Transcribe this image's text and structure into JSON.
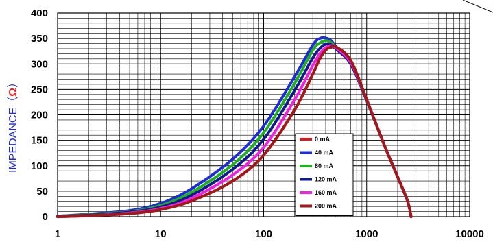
{
  "chart_data": {
    "type": "line",
    "title": "",
    "xlabel": "",
    "ylabel": "IMPEDANCE（",
    "ylabel_unit": "Ω",
    "ylabel_close": "）",
    "x_scale": "log",
    "xlim": [
      1,
      10000
    ],
    "ylim": [
      0,
      400
    ],
    "grid": true,
    "legend_position": "center-right",
    "x_ticks": [
      1,
      10,
      100,
      1000,
      10000
    ],
    "x_tick_labels": [
      "1",
      "10",
      "100",
      "1000",
      "10000"
    ],
    "y_ticks": [
      0,
      50,
      100,
      150,
      200,
      250,
      300,
      350,
      400
    ],
    "y_tick_labels": [
      "0",
      "50",
      "100",
      "150",
      "200",
      "250",
      "300",
      "350",
      "400"
    ],
    "x": [
      1,
      2,
      5,
      10,
      20,
      50,
      100,
      200,
      300,
      350,
      400,
      450,
      500,
      700,
      1000,
      1500,
      2000,
      2500,
      2700
    ],
    "series": [
      {
        "name": "0 mA",
        "color": "#d81c1c",
        "values": [
          0,
          2,
          6,
          14,
          31,
          70,
          121,
          210,
          280,
          310,
          327,
          333,
          334,
          307,
          230,
          138,
          78,
          30,
          0
        ]
      },
      {
        "name": "40 mA",
        "color": "#1e2bd9",
        "values": [
          1,
          5,
          12,
          26,
          55,
          113,
          178,
          275,
          337,
          350,
          351,
          346,
          335,
          300,
          228,
          138,
          78,
          30,
          0
        ]
      },
      {
        "name": "80 mA",
        "color": "#1eb01e",
        "values": [
          1,
          4,
          10,
          22,
          48,
          102,
          165,
          262,
          327,
          341,
          346,
          342,
          332,
          300,
          229,
          138,
          78,
          30,
          0
        ]
      },
      {
        "name": "120 mA",
        "color": "#101a8c",
        "values": [
          1,
          3,
          9,
          19,
          42,
          93,
          152,
          248,
          312,
          330,
          339,
          338,
          330,
          300,
          229,
          138,
          78,
          30,
          0
        ]
      },
      {
        "name": "160 mA",
        "color": "#f020e0",
        "values": [
          0,
          2,
          7,
          16,
          36,
          82,
          136,
          230,
          297,
          320,
          332,
          336,
          332,
          303,
          230,
          138,
          78,
          30,
          0
        ]
      },
      {
        "name": "200 mA",
        "color": "#a01818",
        "values": [
          0,
          2,
          6,
          14,
          31,
          70,
          121,
          210,
          280,
          310,
          327,
          333,
          334,
          307,
          230,
          138,
          78,
          30,
          0
        ]
      }
    ]
  }
}
